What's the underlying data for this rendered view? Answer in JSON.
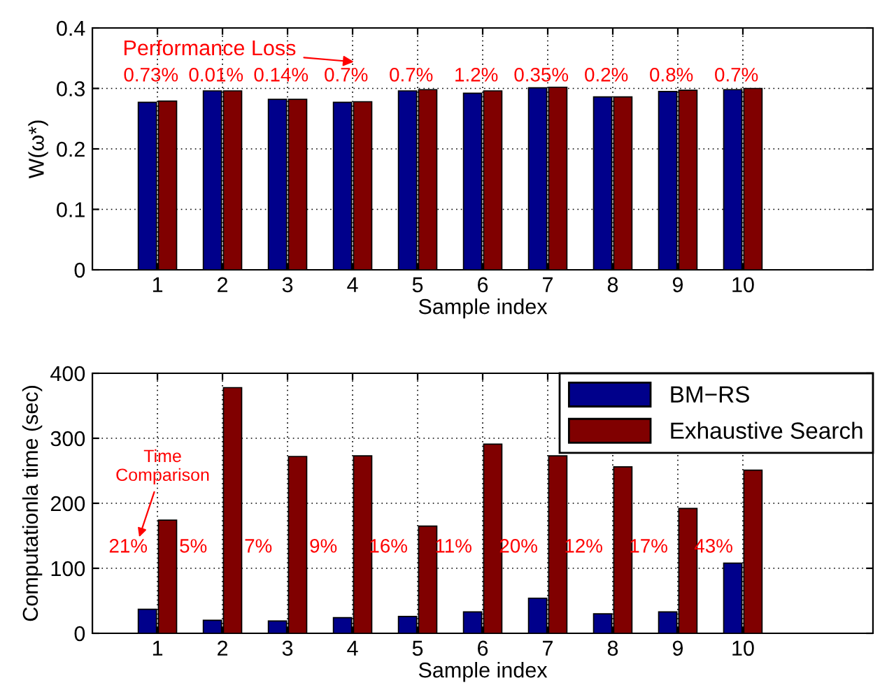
{
  "chart_data": [
    {
      "type": "bar",
      "xlabel": "Sample index",
      "ylabel": "W(ω*)",
      "x": [
        1,
        2,
        3,
        4,
        5,
        6,
        7,
        8,
        9,
        10
      ],
      "xlim": [
        0,
        12
      ],
      "xticks": [
        1,
        2,
        3,
        4,
        5,
        6,
        7,
        8,
        9,
        10
      ],
      "ylim": [
        0,
        0.4
      ],
      "yticks": [
        0,
        0.1,
        0.2,
        0.3,
        0.4
      ],
      "grid": true,
      "legend": false,
      "series": [
        {
          "color": "#00008b",
          "values": [
            0.277,
            0.296,
            0.282,
            0.277,
            0.296,
            0.292,
            0.301,
            0.286,
            0.295,
            0.298
          ]
        },
        {
          "color": "#800000",
          "values": [
            0.279,
            0.296,
            0.282,
            0.278,
            0.298,
            0.296,
            0.302,
            0.286,
            0.297,
            0.3
          ]
        }
      ],
      "annotations": [
        "Performance Loss",
        "0.73%",
        "0.01%",
        "0.14%",
        "0.7%",
        "0.7%",
        "1.2%",
        "0.35%",
        "0.2%",
        "0.8%",
        "0.7%"
      ]
    },
    {
      "type": "bar",
      "xlabel": "Sample index",
      "ylabel": "Computationla time (sec)",
      "x": [
        1,
        2,
        3,
        4,
        5,
        6,
        7,
        8,
        9,
        10
      ],
      "xlim": [
        0,
        12
      ],
      "xticks": [
        1,
        2,
        3,
        4,
        5,
        6,
        7,
        8,
        9,
        10
      ],
      "ylim": [
        0,
        400
      ],
      "yticks": [
        0,
        100,
        200,
        300,
        400
      ],
      "grid": true,
      "legend": "top right",
      "series": [
        {
          "name": "BM−RS",
          "color": "#00008b",
          "values": [
            37,
            20,
            19,
            24,
            26,
            33,
            54,
            30,
            33,
            108
          ]
        },
        {
          "name": "Exhaustive Search",
          "color": "#800000",
          "values": [
            174,
            378,
            272,
            273,
            165,
            291,
            273,
            256,
            192,
            251
          ]
        }
      ],
      "annotations": [
        "Time\nComparison",
        "21%",
        "5%",
        "7%",
        "9%",
        "16%",
        "11%",
        "20%",
        "12%",
        "17%",
        "43%"
      ]
    }
  ]
}
